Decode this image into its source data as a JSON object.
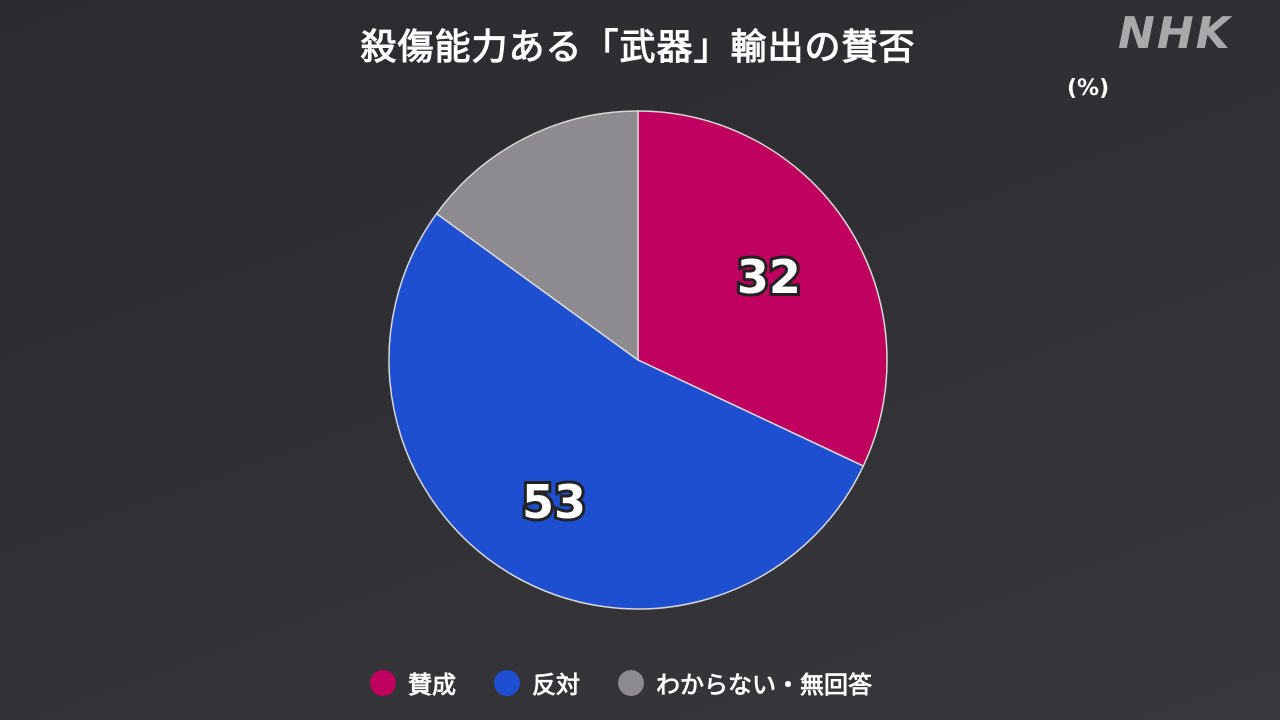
{
  "header": {
    "logo": "NHK"
  },
  "chart_data": {
    "type": "pie",
    "title": "殺傷能力ある「武器」輸出の賛否",
    "unit": "(%)",
    "start": "top",
    "direction": "clockwise",
    "slices": [
      {
        "name": "賛成",
        "value": 32,
        "label": "32",
        "color": "#c0005f"
      },
      {
        "name": "反対",
        "value": 53,
        "label": "53",
        "color": "#1f4fd1"
      },
      {
        "name": "わからない・無回答",
        "value": 15,
        "label": "",
        "color": "#8d8b90"
      }
    ],
    "legend_placement": "bottom"
  }
}
